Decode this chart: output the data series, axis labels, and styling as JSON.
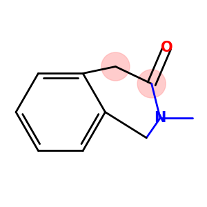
{
  "bg_color": "#ffffff",
  "bond_color": "#000000",
  "n_color": "#0000ff",
  "o_color": "#ff0000",
  "highlight_color": "#ffaaaa",
  "highlight_alpha": 0.6,
  "lw": 2.0,
  "fs": 15
}
